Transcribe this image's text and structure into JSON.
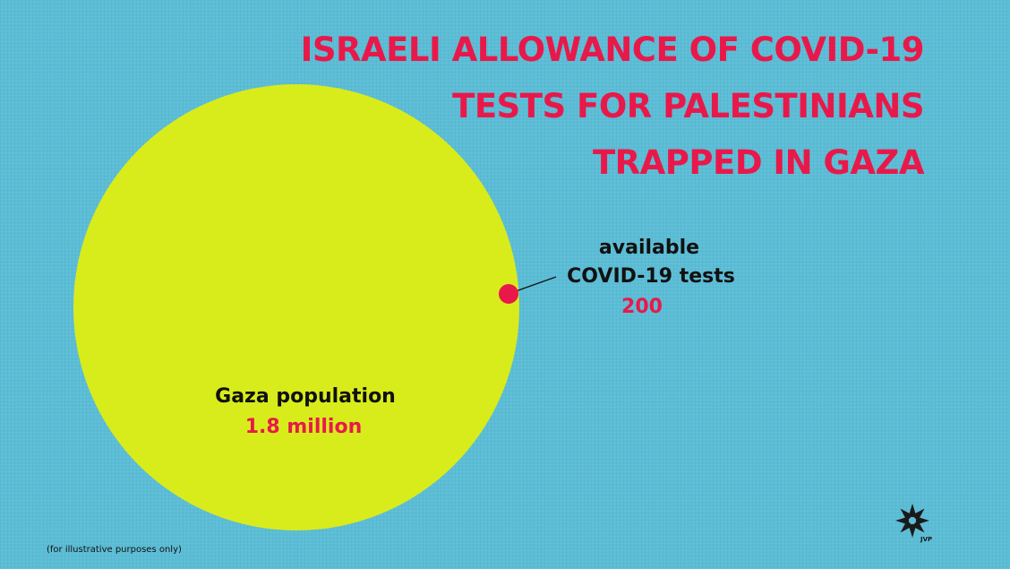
{
  "title": {
    "lines": [
      "ISRAELI ALLOWANCE OF COVID-19",
      "TESTS FOR PALESTINIANS",
      "TRAPPED IN GAZA"
    ],
    "color": "#e8194a"
  },
  "colors": {
    "background": "#5bbdd6",
    "large_circle": "#d8ec1c",
    "small_circle": "#e8194a",
    "label_text": "#111111",
    "value_text": "#e8194a"
  },
  "chart_data": {
    "type": "proportional-circles",
    "title": "ISRAELI ALLOWANCE OF COVID-19 TESTS FOR PALESTINIANS TRAPPED IN GAZA",
    "items": [
      {
        "label": "Gaza population",
        "value_label": "1.8 million",
        "value": 1800000
      },
      {
        "label_lines": [
          "available",
          "COVID-19 tests"
        ],
        "value_label": "200",
        "value": 200
      }
    ]
  },
  "footnote": "(for illustrative purposes only)",
  "logo": {
    "icon": "jvp-star-logo",
    "text": "JVP"
  }
}
